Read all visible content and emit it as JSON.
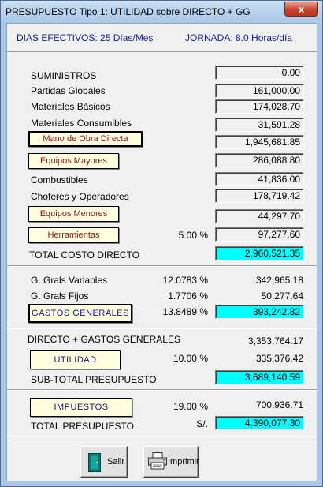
{
  "window": {
    "title": "PRESUPUESTO Tipo 1:   UTILIDAD sobre DIRECTO + GG",
    "close_glyph": "x"
  },
  "header": {
    "dias": "DIAS EFECTIVOS: 25 Días/Mes",
    "jornada": "JORNADA:  8.0 Horas/día"
  },
  "costs": {
    "suministros": {
      "label": "SUMINISTROS",
      "value": "0.00"
    },
    "partidas": {
      "label": "Partidas Globales",
      "value": "161,000.00"
    },
    "materiales_basicos": {
      "label": "Materiales Básicos",
      "value": "174,028.70"
    },
    "materiales_consumibles": {
      "label": "Materiales Consumibles",
      "value": "31,591.28"
    },
    "mano_obra": {
      "label": "Mano de Obra Directa",
      "value": "1,945,681.85"
    },
    "equipos_mayores": {
      "label": "Equipos  Mayores",
      "value": "286,088.80"
    },
    "combustibles": {
      "label": "Combustibles",
      "value": "41,836.00"
    },
    "choferes": {
      "label": "Choferes y Operadores",
      "value": "178,719.42"
    },
    "equipos_menores": {
      "label": "Equipos  Menores",
      "value": "44,297.70"
    },
    "herramientas": {
      "label": "Herramientas",
      "percent": "5.00 %",
      "value": "97,277.60"
    },
    "total_directo": {
      "label": "TOTAL COSTO DIRECTO",
      "value": "2,960,521.35"
    }
  },
  "gastos": {
    "variables": {
      "label": "G. Grals Variables",
      "percent": "12.0783 %",
      "value": "342,965.18"
    },
    "fijos": {
      "label": "G. Grals Fijos",
      "percent": "1.7706 %",
      "value": "50,277.64"
    },
    "generales": {
      "label": "GASTOS  GENERALES",
      "percent": "13.8489 %",
      "value": "393,242.82"
    }
  },
  "totals": {
    "directo_gg": {
      "label": "DIRECTO + GASTOS GENERALES",
      "value": "3,353,764.17"
    },
    "utilidad": {
      "label": "UTILIDAD",
      "percent": "10.00 %",
      "value": "335,376.42"
    },
    "subtotal": {
      "label": "SUB-TOTAL PRESUPUESTO",
      "value": "3,689,140.59"
    },
    "impuestos": {
      "label": "IMPUESTOS",
      "percent": "19.00 %",
      "value": "700,936.71"
    },
    "total": {
      "label": "TOTAL PRESUPUESTO",
      "currency": "S/.",
      "value": "4,390,077.30"
    }
  },
  "actions": {
    "salir": "Salir",
    "imprimir": "Imprimir"
  },
  "colors": {
    "highlight": "#00ffff",
    "button_bg": "#ffffe0",
    "button_text": "#8b1010",
    "header_text": "#0f1f8a"
  }
}
